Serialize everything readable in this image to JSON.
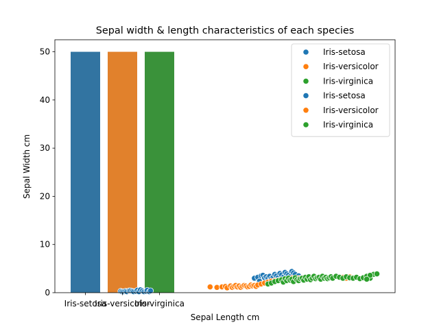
{
  "chart_data": {
    "type": "bar+scatter",
    "title": "Sepal width & length characteristics of each species",
    "xlabel": "Sepal Length cm",
    "ylabel": "Sepal Width cm",
    "ylim": [
      0,
      52.5
    ],
    "yticks": [
      0,
      10,
      20,
      30,
      40,
      50
    ],
    "bar_categories": [
      "Iris-setosa",
      "Iris-versicolor",
      "Iris-virginica"
    ],
    "bars": [
      {
        "category": "Iris-setosa",
        "value": 50,
        "color": "#3274a1"
      },
      {
        "category": "Iris-versicolor",
        "value": 50,
        "color": "#e1812c"
      },
      {
        "category": "Iris-virginica",
        "value": 50,
        "color": "#3a923a"
      }
    ],
    "scatter_xlim": [
      -0.5,
      151
    ],
    "scatter": [
      {
        "name": "Iris-setosa",
        "color": "#1f77b4",
        "points": [
          [
            -0.5,
            0.3
          ],
          [
            0.3,
            0.2
          ],
          [
            1.2,
            0.2
          ],
          [
            2.3,
            0.3
          ],
          [
            3.1,
            0.2
          ],
          [
            4.4,
            0.4
          ],
          [
            5.2,
            0.4
          ],
          [
            6.3,
            0.3
          ],
          [
            7.1,
            0.2
          ],
          [
            8.4,
            0.3
          ],
          [
            9.3,
            0.5
          ],
          [
            10.2,
            0.2
          ],
          [
            11.1,
            0.6
          ],
          [
            12.3,
            0.4
          ],
          [
            13.2,
            0.2
          ],
          [
            14.4,
            0.3
          ],
          [
            15.1,
            0.5
          ],
          [
            16.3,
            0.2
          ],
          [
            17.0,
            0.4
          ],
          [
            78,
            3.0
          ],
          [
            80,
            3.2
          ],
          [
            81,
            2.4
          ],
          [
            82,
            3.5
          ],
          [
            83,
            3.6
          ],
          [
            84,
            3.1
          ],
          [
            85,
            3.3
          ],
          [
            86,
            3.0
          ],
          [
            87,
            3.4
          ],
          [
            88,
            2.9
          ],
          [
            89,
            3.2
          ],
          [
            90,
            3.8
          ],
          [
            91,
            3.5
          ],
          [
            92,
            3.1
          ],
          [
            93,
            4.0
          ],
          [
            94,
            3.7
          ],
          [
            95,
            3.2
          ],
          [
            96,
            4.2
          ],
          [
            97,
            3.9
          ],
          [
            98,
            3.6
          ],
          [
            99,
            3.3
          ],
          [
            100,
            4.4
          ],
          [
            101,
            4.1
          ],
          [
            102,
            3.8
          ],
          [
            103,
            3.0
          ],
          [
            104,
            3.5
          ]
        ]
      },
      {
        "name": "Iris-versicolor",
        "color": "#ff7f0e",
        "points": [
          [
            52,
            1.2
          ],
          [
            56,
            1.1
          ],
          [
            59,
            1.2
          ],
          [
            61,
            1.3
          ],
          [
            62,
            1.0
          ],
          [
            64,
            1.4
          ],
          [
            65,
            1.1
          ],
          [
            66,
            1.3
          ],
          [
            67,
            1.5
          ],
          [
            68,
            1.2
          ],
          [
            69,
            1.4
          ],
          [
            70,
            1.1
          ],
          [
            71,
            1.3
          ],
          [
            72,
            1.5
          ],
          [
            73,
            1.4
          ],
          [
            74,
            1.2
          ],
          [
            75,
            1.3
          ],
          [
            76,
            1.6
          ],
          [
            77,
            1.4
          ],
          [
            78,
            1.5
          ],
          [
            79,
            1.3
          ],
          [
            80,
            1.6
          ],
          [
            82,
            1.8
          ],
          [
            84,
            2.0
          ],
          [
            86,
            2.2
          ],
          [
            88,
            2.4
          ],
          [
            90,
            2.5
          ],
          [
            92,
            2.6
          ],
          [
            94,
            2.7
          ],
          [
            96,
            2.8
          ],
          [
            98,
            2.9
          ],
          [
            100,
            3.0
          ],
          [
            102,
            2.8
          ],
          [
            104,
            3.0
          ],
          [
            106,
            3.1
          ],
          [
            108,
            3.2
          ],
          [
            110,
            3.0
          ],
          [
            112,
            2.9
          ],
          [
            114,
            3.1
          ],
          [
            116,
            3.2
          ],
          [
            118,
            3.3
          ],
          [
            120,
            3.0
          ],
          [
            122,
            3.1
          ],
          [
            124,
            3.2
          ],
          [
            126,
            3.4
          ],
          [
            128,
            3.1
          ],
          [
            130,
            3.2
          ],
          [
            132,
            3.0
          ],
          [
            134,
            3.3
          ],
          [
            136,
            3.1
          ]
        ]
      },
      {
        "name": "Iris-virginica",
        "color": "#2ca02c",
        "points": [
          [
            86,
            1.8
          ],
          [
            88,
            2.0
          ],
          [
            90,
            2.3
          ],
          [
            92,
            2.5
          ],
          [
            94,
            2.7
          ],
          [
            95,
            2.2
          ],
          [
            96,
            2.9
          ],
          [
            97,
            2.5
          ],
          [
            98,
            3.0
          ],
          [
            99,
            2.6
          ],
          [
            100,
            2.8
          ],
          [
            101,
            2.3
          ],
          [
            102,
            3.1
          ],
          [
            103,
            2.7
          ],
          [
            104,
            2.5
          ],
          [
            105,
            2.9
          ],
          [
            106,
            3.0
          ],
          [
            107,
            2.6
          ],
          [
            108,
            3.2
          ],
          [
            109,
            2.8
          ],
          [
            110,
            3.3
          ],
          [
            111,
            2.7
          ],
          [
            112,
            3.0
          ],
          [
            113,
            3.4
          ],
          [
            114,
            2.9
          ],
          [
            115,
            3.1
          ],
          [
            116,
            3.2
          ],
          [
            117,
            2.8
          ],
          [
            118,
            3.4
          ],
          [
            119,
            3.0
          ],
          [
            120,
            3.2
          ],
          [
            121,
            2.9
          ],
          [
            122,
            3.1
          ],
          [
            123,
            3.3
          ],
          [
            124,
            3.0
          ],
          [
            126,
            3.4
          ],
          [
            128,
            3.2
          ],
          [
            130,
            3.0
          ],
          [
            132,
            3.3
          ],
          [
            134,
            3.1
          ],
          [
            136,
            3.0
          ],
          [
            138,
            3.2
          ],
          [
            140,
            2.9
          ],
          [
            142,
            3.1
          ],
          [
            144,
            3.4
          ],
          [
            146,
            3.0
          ],
          [
            148,
            3.8
          ],
          [
            150,
            3.9
          ],
          [
            146,
            3.6
          ],
          [
            144,
            2.8
          ]
        ]
      }
    ],
    "legend": {
      "placement": "top-right",
      "entries": [
        {
          "label": "Iris-setosa",
          "color": "#1f77b4"
        },
        {
          "label": "Iris-versicolor",
          "color": "#ff7f0e"
        },
        {
          "label": "Iris-virginica",
          "color": "#2ca02c"
        },
        {
          "label": "Iris-setosa",
          "color": "#1f77b4"
        },
        {
          "label": "Iris-versicolor",
          "color": "#ff7f0e"
        },
        {
          "label": "Iris-virginica",
          "color": "#2ca02c"
        }
      ]
    },
    "grid": false
  }
}
